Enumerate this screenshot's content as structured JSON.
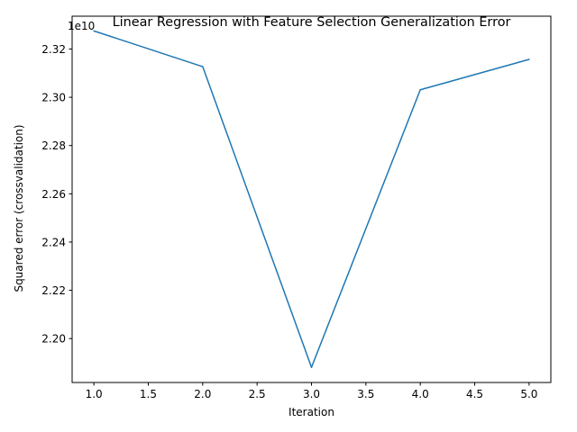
{
  "chart_data": {
    "type": "line",
    "title": "Linear Regression with Feature Selection Generalization Error",
    "xlabel": "Iteration",
    "ylabel": "Squared error (crossvalidation)",
    "offset_text": "1e10",
    "x": [
      1.0,
      2.0,
      3.0,
      4.0,
      5.0
    ],
    "y": [
      23275000000,
      23127000000,
      21881000000,
      23031000000,
      23157000000
    ],
    "xlim": [
      0.8,
      5.2
    ],
    "ylim": [
      21818000000,
      23336000000
    ],
    "xticks": [
      1.0,
      1.5,
      2.0,
      2.5,
      3.0,
      3.5,
      4.0,
      4.5,
      5.0
    ],
    "xtick_labels": [
      "1.0",
      "1.5",
      "2.0",
      "2.5",
      "3.0",
      "3.5",
      "4.0",
      "4.5",
      "5.0"
    ],
    "yticks": [
      22000000000,
      22200000000,
      22400000000,
      22600000000,
      22800000000,
      23000000000,
      23200000000
    ],
    "ytick_labels": [
      "2.20",
      "2.22",
      "2.24",
      "2.26",
      "2.28",
      "2.30",
      "2.32"
    ],
    "line_color": "#1f77b4",
    "grid": false,
    "legend": "none"
  }
}
